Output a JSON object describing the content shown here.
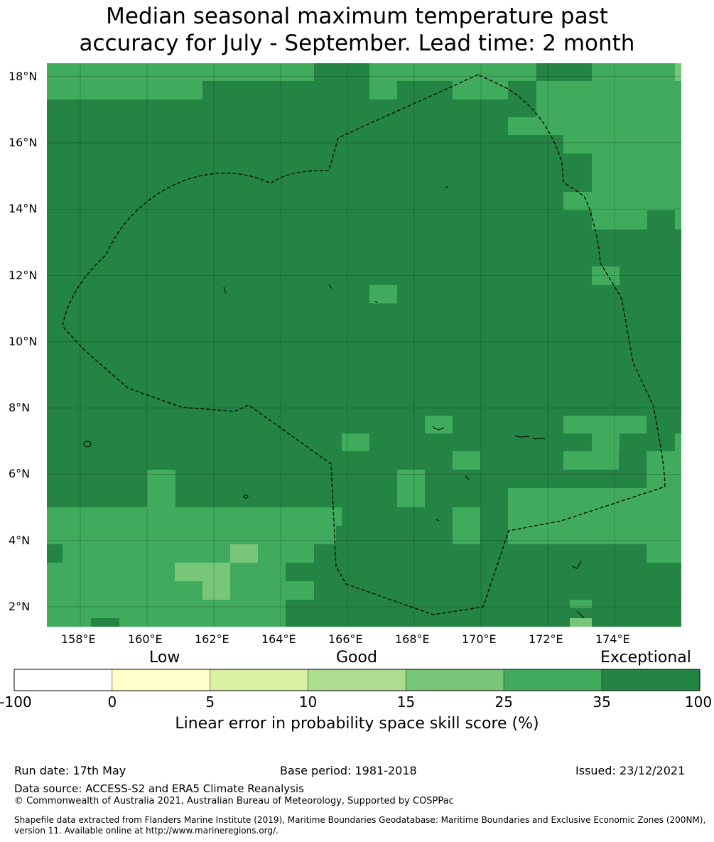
{
  "title": {
    "line1": "Median seasonal maximum temperature past",
    "line2": "accuracy for July - September. Lead time: 2 month"
  },
  "map": {
    "lat_labels": [
      "18°N",
      "16°N",
      "14°N",
      "12°N",
      "10°N",
      "8°N",
      "6°N",
      "4°N",
      "2°N"
    ],
    "lon_labels": [
      "158°E",
      "160°E",
      "162°E",
      "164°E",
      "166°E",
      "168°E",
      "170°E",
      "172°E",
      "174°E"
    ],
    "lat_range": [
      1.4,
      18.4
    ],
    "lon_range": [
      157.0,
      176.0
    ],
    "cell_size_deg": [
      0.83,
      0.55
    ],
    "category_colors": {
      "exceptional": "#238443",
      "good_high": "#41ab5d",
      "good_mid": "#78c679",
      "border": "#000000"
    },
    "grid_lines": true
  },
  "colorbar": {
    "category_labels": {
      "low": "Low",
      "good": "Good",
      "exceptional": "Exceptional"
    },
    "ticks": [
      "-100",
      "0",
      "5",
      "10",
      "15",
      "25",
      "35",
      "100"
    ],
    "colors": [
      "#ffffff",
      "#ffffcc",
      "#d9f0a3",
      "#addd8e",
      "#78c679",
      "#41ab5d",
      "#238443"
    ],
    "axis_label": "Linear error in probability space skill score (%)"
  },
  "footer": {
    "run_date": "Run date: 17th May",
    "base_period": "Base period: 1981-2018",
    "issued": "Issued: 23/12/2021",
    "data_source": "Data source: ACCESS-S2 and ERA5 Climate Reanalysis",
    "copyright": "© Commonwealth of Australia 2021, Australian Bureau of Meteorology, Supported by COSPPac",
    "shapefile_line1": "Shapefile data extracted from Flanders Marine Institute (2019), Maritime Boundaries Geodatabase: Maritime Boundaries and Exclusive Economic Zones (200NM),",
    "shapefile_line2": "version 11. Available online at http://www.marineregions.org/."
  }
}
